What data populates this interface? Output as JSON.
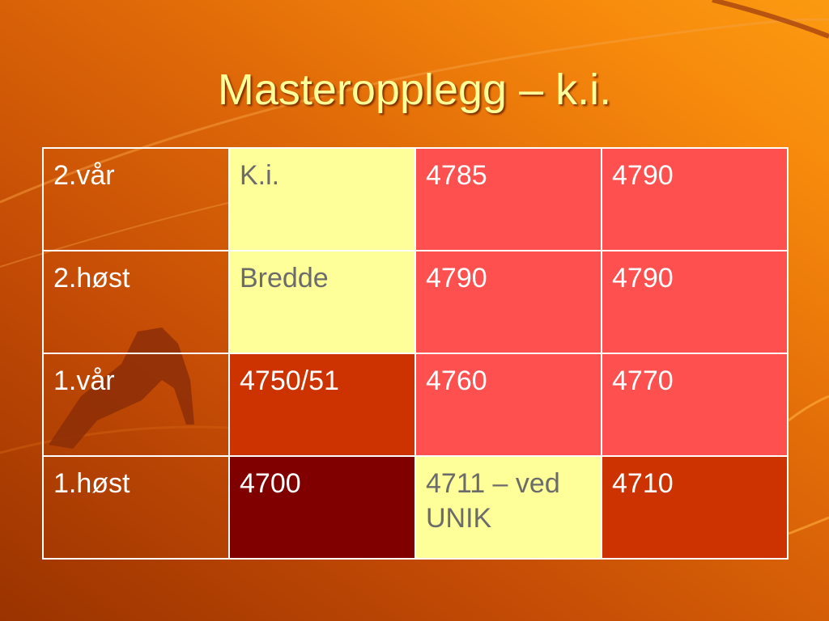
{
  "header": {
    "title": "Masteropplegg – k.i."
  },
  "table": {
    "rows": [
      [
        "2.vår",
        "K.i.",
        "4785",
        "4790"
      ],
      [
        "2.høst",
        "Bredde",
        "4790",
        "4790"
      ],
      [
        "1.vår",
        "4750/51",
        "4760",
        "4770"
      ],
      [
        "1.høst",
        "4700",
        "4711 – ved UNIK",
        "4710"
      ]
    ]
  }
}
